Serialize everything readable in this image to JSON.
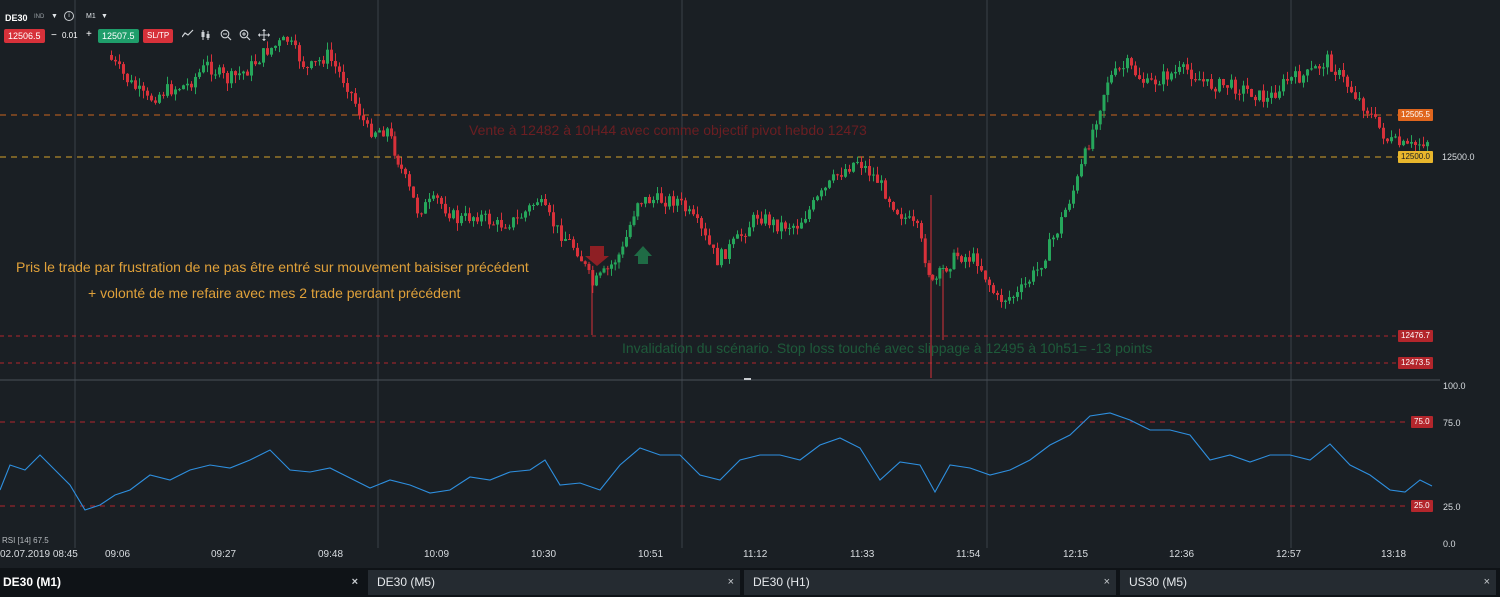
{
  "toolbar": {
    "symbol": "DE30",
    "symbol_badge": "IND",
    "timeframe": "M1",
    "sell_price": "12506.5",
    "lot_size": "0.01",
    "lot_minus": "−",
    "lot_plus": "+",
    "buy_price": "12507.5",
    "sltp_label": "SL/TP",
    "info_icon": "i",
    "tools": [
      "line-chart-icon",
      "candles-icon",
      "zoom-out-icon",
      "zoom-in-icon",
      "crosshair-move-icon"
    ]
  },
  "annotations": {
    "sell_note": "Vente à 12482 à 10H44 avec comme objectif pivot hebdo 12473",
    "frustration_line1": "Pris le trade par frustration de ne pas être entré sur mouvement baisiser précédent",
    "frustration_line2": "+ volonté de me refaire avec mes 2 trade perdant précédent",
    "invalidation": "Invalidation du scénario. Stop loss touché avec slippage à 12495 à 10h51= -13 points"
  },
  "price_levels": {
    "upper_orange": "12505.5",
    "yellow": "12500.0",
    "current": "12500.0",
    "red_1": "12476.7",
    "red_2": "12473.5"
  },
  "rsi": {
    "legend": "RSI [14] 67.5",
    "axis": [
      "100.0",
      "75.0",
      "25.0",
      "0.0"
    ],
    "overbought": "75.0",
    "oversold": "25.0"
  },
  "time_axis": [
    "02.07.2019 08:45",
    "09:06",
    "09:27",
    "09:48",
    "10:09",
    "10:30",
    "10:51",
    "11:12",
    "11:33",
    "11:54",
    "12:15",
    "12:36",
    "12:57",
    "13:18"
  ],
  "tabs": [
    {
      "label": "DE30 (M1)",
      "close": "×"
    },
    {
      "label": "DE30 (M5)",
      "close": "×"
    },
    {
      "label": "DE30 (H1)",
      "close": "×"
    },
    {
      "label": "US30 (M5)",
      "close": "×"
    }
  ],
  "colors": {
    "up": "#26a65b",
    "down": "#d7313a",
    "rsi_line": "#2e8fdf",
    "orange_line": "#c9641e",
    "yellow_line": "#d4a22a",
    "red_dashed": "#b3262c",
    "grid": "#3a4048"
  }
}
